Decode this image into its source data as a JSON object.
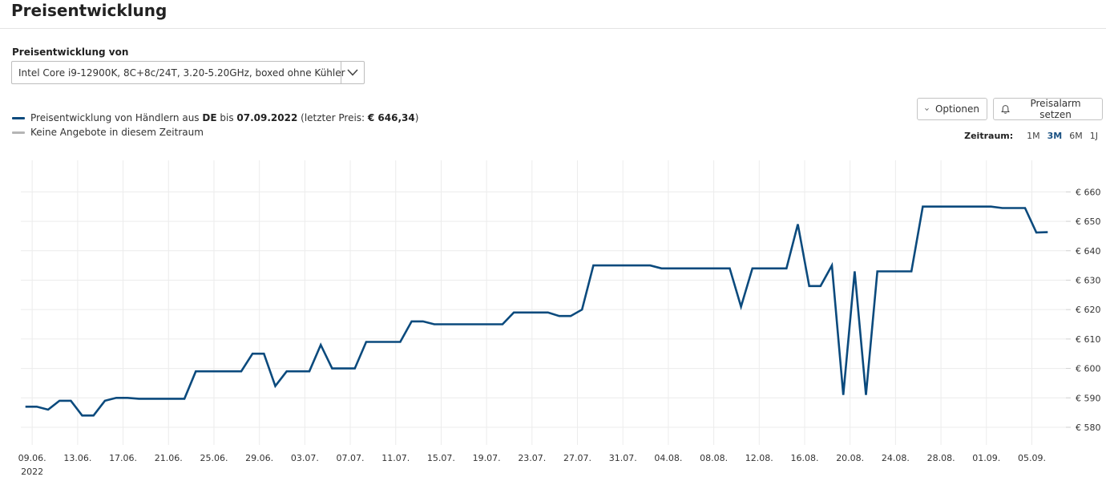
{
  "header": {
    "title": "Preisentwicklung"
  },
  "product_select": {
    "label": "Preisentwicklung von",
    "value": "Intel Core i9-12900K, 8C+8c/24T, 3.20-5.20GHz, boxed ohne Kühler",
    "icon": "chevron-down-icon"
  },
  "legend": {
    "series_color": "#0b4a7d",
    "empty_color": "#b5b5b5",
    "series_prefix": "Preisentwicklung von Händlern aus ",
    "country": "DE",
    "until_text": " bis ",
    "date": "07.09.2022",
    "last_price_prefix": " (letzter Preis: ",
    "last_price": "€ 646,34",
    "last_price_suffix": ")",
    "empty_label": "Keine Angebote in diesem Zeitraum"
  },
  "toolbar": {
    "options_label": "Optionen",
    "options_icon": "chevron-down-icon",
    "alarm_label": "Preisalarm setzen",
    "alarm_icon": "bell-icon"
  },
  "range": {
    "label": "Zeitraum:",
    "options": [
      "1M",
      "3M",
      "6M",
      "1J"
    ],
    "active": "3M"
  },
  "chart_data": {
    "type": "line",
    "grid": true,
    "line_color": "#0b4a7d",
    "year_label": "2022",
    "x_tick_labels": [
      "09.06.",
      "13.06.",
      "17.06.",
      "21.06.",
      "25.06.",
      "29.06.",
      "03.07.",
      "07.07.",
      "11.07.",
      "15.07.",
      "19.07.",
      "23.07.",
      "27.07.",
      "31.07.",
      "04.08.",
      "08.08.",
      "12.08.",
      "16.08.",
      "20.08.",
      "24.08.",
      "28.08.",
      "01.09.",
      "05.09."
    ],
    "y_ticks": [
      580,
      590,
      600,
      610,
      620,
      630,
      640,
      650,
      660
    ],
    "y_tick_labels": [
      "€ 580",
      "€ 590",
      "€ 600",
      "€ 610",
      "€ 620",
      "€ 630",
      "€ 640",
      "€ 650",
      "€ 660"
    ],
    "ylim": [
      574,
      668
    ],
    "x_range_days": [
      -1,
      91
    ],
    "series": [
      {
        "x_days": [
          -0.6,
          0.4,
          1.4,
          2.4,
          3.4,
          4.4,
          5.4,
          6.4,
          7.4,
          8.4,
          9.4,
          13.4,
          14.4,
          15.4,
          16.4,
          17.4,
          18.4,
          19.4,
          20.4,
          21.4,
          22.4,
          23.4,
          24.4,
          25.4,
          26.4,
          27.4,
          28.4,
          29.4,
          30.4,
          31.4,
          32.4,
          33.4,
          34.4,
          35.4,
          36.4,
          37.4,
          38.4,
          39.4,
          40.4,
          41.4,
          42.4,
          43.4,
          44.4,
          45.4,
          46.4,
          47.4,
          48.4,
          49.4,
          50.4,
          51.4,
          52.4,
          53.4,
          54.4,
          55.4,
          56.4,
          57.4,
          58.4,
          59.4,
          60.4,
          61.4,
          62.4,
          63.4,
          64.4,
          65.4,
          66.4,
          67.4,
          68.4,
          69.4,
          70.4,
          71.4,
          72.4,
          73.4,
          74.4,
          75.4,
          76.4,
          77.4,
          78.4,
          79.4,
          80.4,
          81.4,
          82.4,
          83.4,
          84.4,
          85.4,
          86.4,
          87.4,
          88.4,
          89.4
        ],
        "values": [
          587,
          587,
          586,
          589,
          589,
          584,
          584,
          589,
          590,
          590,
          589.7,
          589.7,
          599,
          599,
          599,
          599,
          599,
          605,
          605,
          594,
          599,
          599,
          599,
          608,
          600,
          600,
          600,
          609,
          609,
          609,
          609,
          616,
          616,
          615,
          615,
          615,
          615,
          615,
          615,
          615,
          619,
          619,
          619,
          619,
          617.8,
          617.8,
          620,
          635,
          635,
          635,
          635,
          635,
          635,
          634,
          634,
          634,
          634,
          634,
          634,
          634,
          621,
          634,
          634,
          634,
          634,
          649,
          628,
          628,
          635,
          591,
          633,
          591,
          633,
          633,
          633,
          633,
          655,
          655,
          655,
          655,
          655,
          655,
          655,
          654.5,
          654.5,
          654.5,
          646.2,
          646.3
        ]
      }
    ]
  }
}
